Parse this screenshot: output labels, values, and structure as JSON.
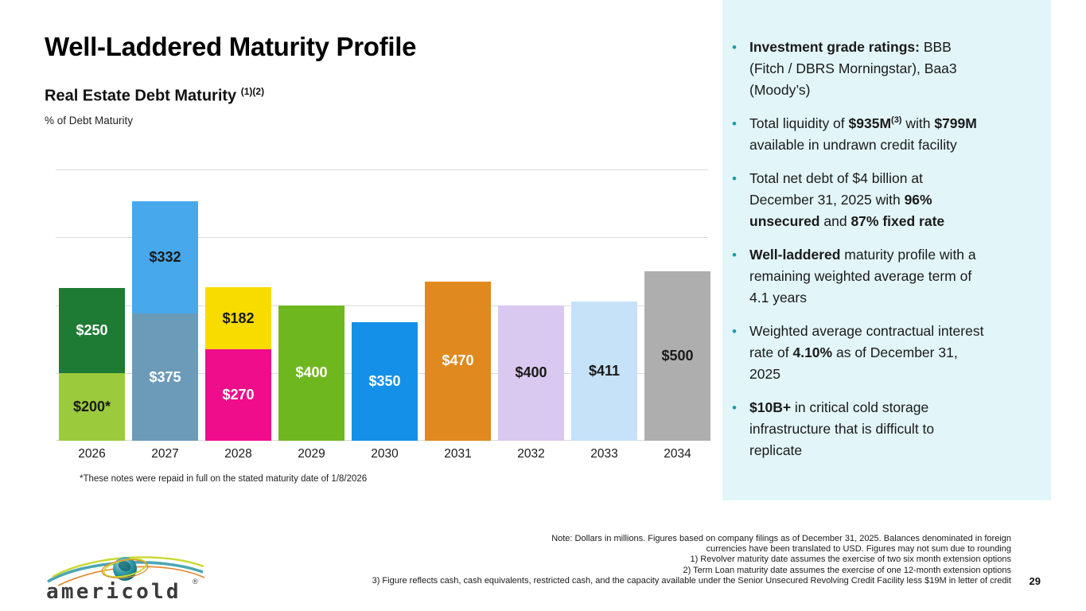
{
  "slide": {
    "title": "Well-Laddered Maturity Profile",
    "subtitle": "Real Estate Debt Maturity",
    "subtitle_superscript": "(1)(2)",
    "axis_caption": "% of Debt Maturity",
    "chart_footnote": "*These notes were repaid in full on the stated maturity date of 1/8/2026",
    "page_number": "29",
    "logo_text": "americold",
    "logo_registered": "®"
  },
  "chart_data": {
    "type": "bar",
    "stacked": true,
    "title": "Real Estate Debt Maturity (1)(2)",
    "ylabel": "% of Debt Maturity",
    "xlabel": "",
    "categories": [
      "2026",
      "2027",
      "2028",
      "2029",
      "2030",
      "2031",
      "2032",
      "2033",
      "2034"
    ],
    "ylim": [
      0,
      800
    ],
    "gridline_step": 200,
    "grid": true,
    "legend": "none",
    "gridline_color": "#dadada",
    "bars": [
      {
        "year": "2026",
        "total": 450,
        "segments": [
          {
            "label": "$200*",
            "value": 200,
            "color": "#9BCB3C",
            "text_color": "#1a1a1a"
          },
          {
            "label": "$250",
            "value": 250,
            "color": "#1E7B33",
            "text_color": "#ffffff"
          }
        ]
      },
      {
        "year": "2027",
        "total": 707,
        "segments": [
          {
            "label": "$375",
            "value": 375,
            "color": "#6C9BB9",
            "text_color": "#ffffff"
          },
          {
            "label": "$332",
            "value": 332,
            "color": "#47A8EC",
            "text_color": "#1a1a1a"
          }
        ]
      },
      {
        "year": "2028",
        "total": 452,
        "segments": [
          {
            "label": "$270",
            "value": 270,
            "color": "#F00D8C",
            "text_color": "#ffffff"
          },
          {
            "label": "$182",
            "value": 182,
            "color": "#F8DC00",
            "text_color": "#1a1a1a"
          }
        ]
      },
      {
        "year": "2029",
        "total": 400,
        "segments": [
          {
            "label": "$400",
            "value": 400,
            "color": "#6FB71E",
            "text_color": "#ffffff"
          }
        ]
      },
      {
        "year": "2030",
        "total": 350,
        "segments": [
          {
            "label": "$350",
            "value": 350,
            "color": "#1590E8",
            "text_color": "#ffffff"
          }
        ]
      },
      {
        "year": "2031",
        "total": 470,
        "segments": [
          {
            "label": "$470",
            "value": 470,
            "color": "#E0891E",
            "text_color": "#ffffff"
          }
        ]
      },
      {
        "year": "2032",
        "total": 400,
        "segments": [
          {
            "label": "$400",
            "value": 400,
            "color": "#D9C8F0",
            "text_color": "#1a1a1a"
          }
        ]
      },
      {
        "year": "2033",
        "total": 411,
        "segments": [
          {
            "label": "$411",
            "value": 411,
            "color": "#C5E2F8",
            "text_color": "#1a1a1a"
          }
        ]
      },
      {
        "year": "2034",
        "total": 500,
        "segments": [
          {
            "label": "$500",
            "value": 500,
            "color": "#AFAEAF",
            "text_color": "#1a1a1a"
          }
        ]
      }
    ]
  },
  "sidebar": {
    "background": "#E2F5F9",
    "bullet_color": "#1A9BA6",
    "bullets": [
      [
        {
          "text": "Investment grade ratings:",
          "bold": true
        },
        {
          "text": " BBB (Fitch / DBRS Morningstar), Baa3 (Moody’s)",
          "bold": false
        }
      ],
      [
        {
          "text": "Total liquidity of ",
          "bold": false
        },
        {
          "text": "$935M",
          "bold": true
        },
        {
          "text": "(3)",
          "bold": true,
          "sup": true
        },
        {
          "text": " with ",
          "bold": false
        },
        {
          "text": "$799M",
          "bold": true
        },
        {
          "text": " available in undrawn credit facility",
          "bold": false
        }
      ],
      [
        {
          "text": "Total net debt of $4 billion at December 31, 2025 with ",
          "bold": false
        },
        {
          "text": "96% unsecured",
          "bold": true
        },
        {
          "text": " and ",
          "bold": false
        },
        {
          "text": "87% fixed rate",
          "bold": true
        }
      ],
      [
        {
          "text": "Well-laddered",
          "bold": true
        },
        {
          "text": " maturity profile with a remaining weighted average term of 4.1 years",
          "bold": false
        }
      ],
      [
        {
          "text": "Weighted average contractual interest rate of ",
          "bold": false
        },
        {
          "text": "4.10%",
          "bold": true
        },
        {
          "text": " as of December 31, 2025",
          "bold": false
        }
      ],
      [
        {
          "text": "$10B+",
          "bold": true
        },
        {
          "text": " in critical cold storage infrastructure that is difficult to replicate",
          "bold": false
        }
      ]
    ]
  },
  "footnotes": {
    "lines": [
      "Note: Dollars in millions. Figures based on company filings as of December 31, 2025. Balances denominated in foreign",
      "currencies have been translated to USD. Figures may not sum due to rounding",
      "1) Revolver maturity date assumes the exercise of two six month extension options",
      "2) Term Loan maturity date assumes the exercise of one 12-month extension options",
      "3) Figure reflects cash, cash equivalents, restricted cash, and the capacity available under the Senior Unsecured Revolving Credit Facility less $19M in letter of credit"
    ]
  }
}
